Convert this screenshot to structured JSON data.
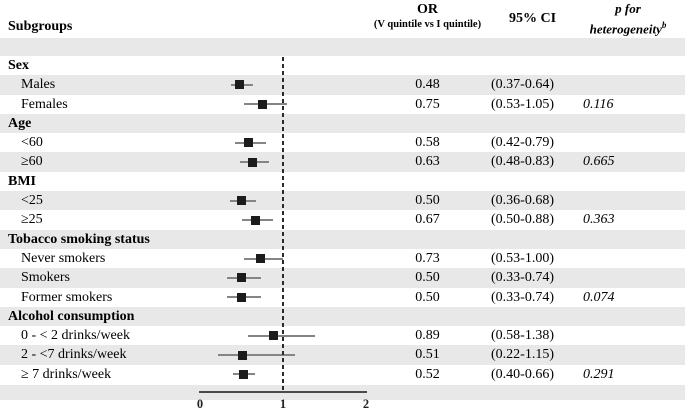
{
  "header": {
    "subgroups": "Subgroups",
    "or_line1": "OR",
    "or_line2": "(V quintile vs I quintile)",
    "ci": "95% CI",
    "p_line1": "p for",
    "p_line2": "heterogeneity",
    "p_superscript": "b"
  },
  "colors": {
    "stripe": "#e8e8e8",
    "ci_line": "#858585",
    "marker": "#1c1c1c",
    "axis": "#4a4a4a"
  },
  "chart_data": {
    "type": "forest",
    "title": "",
    "xlabel": "",
    "xlim": [
      0,
      2
    ],
    "ticks": [
      0,
      1,
      2
    ],
    "tick_labels": [
      "0",
      "1",
      "2"
    ],
    "reference_line": 1,
    "columns": [
      "Subgroups",
      "OR (V quintile vs I quintile)",
      "95% CI",
      "p for heterogeneity b"
    ],
    "groups": [
      {
        "label": "Sex",
        "items": [
          {
            "label": "Males",
            "or": 0.48,
            "ci_low": 0.37,
            "ci_high": 0.64,
            "or_text": "0.48",
            "ci_text": "(0.37-0.64)",
            "p_text": ""
          },
          {
            "label": "Females",
            "or": 0.75,
            "ci_low": 0.53,
            "ci_high": 1.05,
            "or_text": "0.75",
            "ci_text": "(0.53-1.05)",
            "p_text": "0.116"
          }
        ]
      },
      {
        "label": "Age",
        "items": [
          {
            "label": "<60",
            "or": 0.58,
            "ci_low": 0.42,
            "ci_high": 0.79,
            "or_text": "0.58",
            "ci_text": "(0.42-0.79)",
            "p_text": ""
          },
          {
            "label": "≥60",
            "or": 0.63,
            "ci_low": 0.48,
            "ci_high": 0.83,
            "or_text": "0.63",
            "ci_text": "(0.48-0.83)",
            "p_text": "0.665"
          }
        ]
      },
      {
        "label": "BMI",
        "items": [
          {
            "label": "<25",
            "or": 0.5,
            "ci_low": 0.36,
            "ci_high": 0.68,
            "or_text": "0.50",
            "ci_text": "(0.36-0.68)",
            "p_text": ""
          },
          {
            "label": "≥25",
            "or": 0.67,
            "ci_low": 0.5,
            "ci_high": 0.88,
            "or_text": "0.67",
            "ci_text": "(0.50-0.88)",
            "p_text": "0.363"
          }
        ]
      },
      {
        "label": "Tobacco smoking status",
        "items": [
          {
            "label": "Never smokers",
            "or": 0.73,
            "ci_low": 0.53,
            "ci_high": 1.0,
            "or_text": "0.73",
            "ci_text": "(0.53-1.00)",
            "p_text": ""
          },
          {
            "label": "Smokers",
            "or": 0.5,
            "ci_low": 0.33,
            "ci_high": 0.74,
            "or_text": "0.50",
            "ci_text": "(0.33-0.74)",
            "p_text": ""
          },
          {
            "label": "Former smokers",
            "or": 0.5,
            "ci_low": 0.33,
            "ci_high": 0.74,
            "or_text": "0.50",
            "ci_text": "(0.33-0.74)",
            "p_text": "0.074"
          }
        ]
      },
      {
        "label": "Alcohol consumption",
        "items": [
          {
            "label": "0 - < 2 drinks/week",
            "or": 0.89,
            "ci_low": 0.58,
            "ci_high": 1.38,
            "or_text": "0.89",
            "ci_text": "(0.58-1.38)",
            "p_text": ""
          },
          {
            "label": "2 - <7 drinks/week",
            "or": 0.51,
            "ci_low": 0.22,
            "ci_high": 1.15,
            "or_text": "0.51",
            "ci_text": "(0.22-1.15)",
            "p_text": ""
          },
          {
            "label": "≥ 7 drinks/week",
            "or": 0.52,
            "ci_low": 0.4,
            "ci_high": 0.66,
            "or_text": "0.52",
            "ci_text": "(0.40-0.66)",
            "p_text": "0.291"
          }
        ]
      }
    ]
  }
}
